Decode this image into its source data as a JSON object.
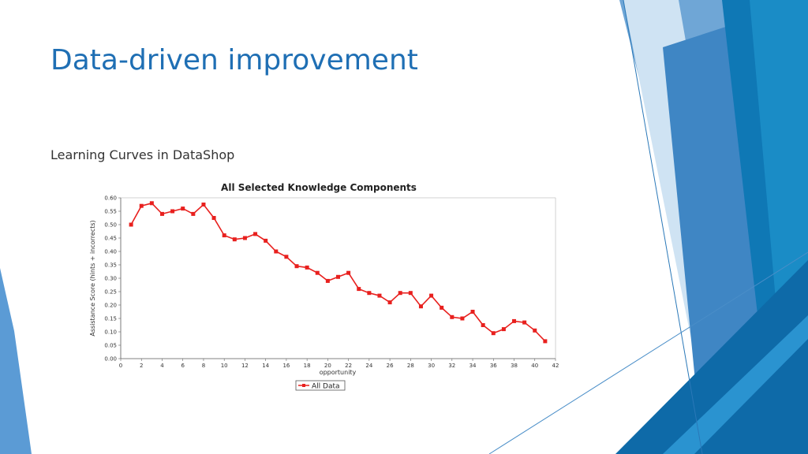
{
  "slide": {
    "title": "Data-driven improvement",
    "subtitle": "Learning Curves in DataShop"
  },
  "theme": {
    "accent": "#1f6fb4",
    "series_color": "#e8201e"
  },
  "chart_data": {
    "type": "line",
    "title": "All Selected Knowledge Components",
    "xlabel": "opportunity",
    "ylabel": "Assistance Score (hints + incorrects)",
    "xlim": [
      0,
      42
    ],
    "ylim": [
      0,
      0.6
    ],
    "xticks": [
      "0",
      "2",
      "4",
      "6",
      "8",
      "10",
      "12",
      "14",
      "16",
      "18",
      "20",
      "22",
      "24",
      "26",
      "28",
      "30",
      "32",
      "34",
      "36",
      "38",
      "40",
      "42"
    ],
    "yticks": [
      "0.00",
      "0.05",
      "0.10",
      "0.15",
      "0.20",
      "0.25",
      "0.30",
      "0.35",
      "0.40",
      "0.45",
      "0.50",
      "0.55",
      "0.60"
    ],
    "grid": true,
    "legend_position": "bottom-center",
    "series": [
      {
        "name": "All Data",
        "x": [
          1,
          2,
          3,
          4,
          5,
          6,
          7,
          8,
          9,
          10,
          11,
          12,
          13,
          14,
          15,
          16,
          17,
          18,
          19,
          20,
          21,
          22,
          23,
          24,
          25,
          26,
          27,
          28,
          29,
          30,
          31,
          32,
          33,
          34,
          35,
          36,
          37,
          38,
          39,
          40,
          41
        ],
        "values": [
          0.5,
          0.57,
          0.58,
          0.54,
          0.55,
          0.56,
          0.54,
          0.575,
          0.525,
          0.46,
          0.445,
          0.45,
          0.465,
          0.44,
          0.4,
          0.38,
          0.345,
          0.34,
          0.32,
          0.29,
          0.305,
          0.32,
          0.26,
          0.245,
          0.235,
          0.21,
          0.245,
          0.245,
          0.195,
          0.235,
          0.19,
          0.155,
          0.15,
          0.175,
          0.125,
          0.095,
          0.11,
          0.14,
          0.135,
          0.105,
          0.065
        ]
      }
    ]
  }
}
